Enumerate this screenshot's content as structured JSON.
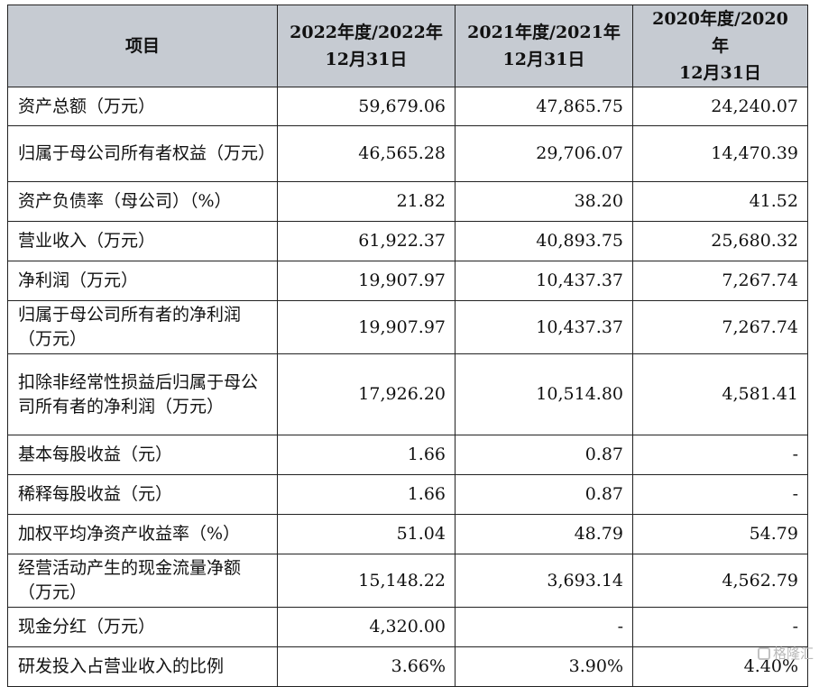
{
  "table": {
    "header": {
      "item": "项目",
      "col1_line1": "2022年度/2022年",
      "col1_line2": "12月31日",
      "col2_line1": "2021年度/2021年",
      "col2_line2": "12月31日",
      "col3_line1": "2020年度/2020年",
      "col3_line2": "12月31日"
    },
    "rows": [
      {
        "label": "资产总额（万元）",
        "v2022": "59,679.06",
        "v2021": "47,865.75",
        "v2020": "24,240.07"
      },
      {
        "label": "归属于母公司所有者权益（万元）",
        "v2022": "46,565.28",
        "v2021": "29,706.07",
        "v2020": "14,470.39"
      },
      {
        "label": "资产负债率（母公司）（%）",
        "v2022": "21.82",
        "v2021": "38.20",
        "v2020": "41.52"
      },
      {
        "label": "营业收入（万元）",
        "v2022": "61,922.37",
        "v2021": "40,893.75",
        "v2020": "25,680.32"
      },
      {
        "label": "净利润（万元）",
        "v2022": "19,907.97",
        "v2021": "10,437.37",
        "v2020": "7,267.74"
      },
      {
        "label": "归属于母公司所有者的净利润（万元）",
        "v2022": "19,907.97",
        "v2021": "10,437.37",
        "v2020": "7,267.74"
      },
      {
        "label": "扣除非经常性损益后归属于母公司所有者的净利润（万元）",
        "v2022": "17,926.20",
        "v2021": "10,514.80",
        "v2020": "4,581.41"
      },
      {
        "label": "基本每股收益（元）",
        "v2022": "1.66",
        "v2021": "0.87",
        "v2020": "-"
      },
      {
        "label": "稀释每股收益（元）",
        "v2022": "1.66",
        "v2021": "0.87",
        "v2020": "-"
      },
      {
        "label": "加权平均净资产收益率（%）",
        "v2022": "51.04",
        "v2021": "48.79",
        "v2020": "54.79"
      },
      {
        "label": "经营活动产生的现金流量净额（万元）",
        "v2022": "15,148.22",
        "v2021": "3,693.14",
        "v2020": "4,562.79"
      },
      {
        "label": "现金分红（万元）",
        "v2022": "4,320.00",
        "v2021": "-",
        "v2020": "-"
      },
      {
        "label": "研发投入占营业收入的比例",
        "v2022": "3.66%",
        "v2021": "3.90%",
        "v2020": "4.40%"
      }
    ]
  },
  "watermark": {
    "text": "格隆汇",
    "icon": "watermark-logo-icon"
  }
}
